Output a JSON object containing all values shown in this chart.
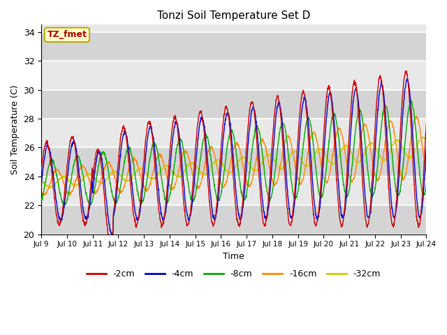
{
  "title": "Tonzi Soil Temperature Set D",
  "xlabel": "Time",
  "ylabel": "Soil Temperature (C)",
  "ylim": [
    20,
    34.5
  ],
  "xlim": [
    0,
    15
  ],
  "plot_bg": "#e8e8e8",
  "legend_label": "TZ_fmet",
  "legend_box_color": "#ffffcc",
  "legend_box_edge": "#bbaa00",
  "series_colors": [
    "#cc0000",
    "#0000cc",
    "#00aa00",
    "#ff8800",
    "#cccc00"
  ],
  "series_labels": [
    "-2cm",
    "-4cm",
    "-8cm",
    "-16cm",
    "-32cm"
  ],
  "xtick_labels": [
    "Jul 9",
    "Jul 10",
    "Jul 11",
    "Jul 12",
    "Jul 13",
    "Jul 14",
    "Jul 15",
    "Jul 16",
    "Jul 17",
    "Jul 18",
    "Jul 19",
    "Jul 20",
    "Jul 21",
    "Jul 22",
    "Jul 23",
    "Jul 24"
  ],
  "xtick_positions": [
    0,
    1,
    2,
    3,
    4,
    5,
    6,
    7,
    8,
    9,
    10,
    11,
    12,
    13,
    14,
    15
  ],
  "ytick_labels": [
    "20",
    "22",
    "24",
    "26",
    "28",
    "30",
    "32",
    "34"
  ],
  "ytick_positions": [
    20,
    22,
    24,
    26,
    28,
    30,
    32,
    34
  ]
}
